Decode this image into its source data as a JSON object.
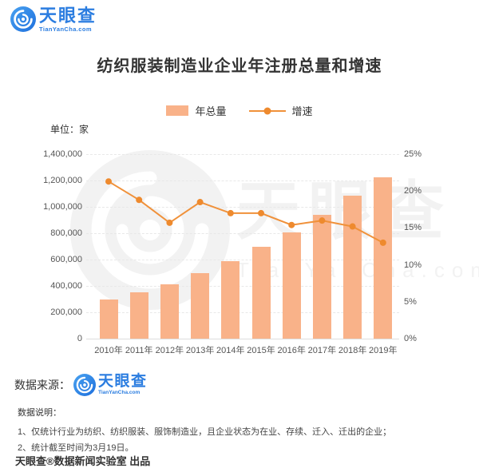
{
  "brand": {
    "name": "天眼查",
    "domain": "TianYanCha.com"
  },
  "header": {
    "title": "纺织服装制造业企业年注册总量和增速"
  },
  "legend": {
    "bar_label": "年总量",
    "line_label": "增速"
  },
  "unit_label": "单位：家",
  "chart_data": {
    "type": "bar",
    "title": "纺织服装制造业企业年注册总量和增速",
    "categories": [
      "2010年",
      "2011年",
      "2012年",
      "2013年",
      "2014年",
      "2015年",
      "2016年",
      "2017年",
      "2018年",
      "2019年"
    ],
    "series": [
      {
        "name": "年总量",
        "type": "bar",
        "axis": "left",
        "color": "#F9B289",
        "values": [
          300000,
          350000,
          415000,
          500000,
          590000,
          695000,
          805000,
          940000,
          1085000,
          1225000
        ]
      },
      {
        "name": "增速",
        "type": "line",
        "axis": "right",
        "color": "#F0913A",
        "marker_color": "#EE8A2E",
        "values": [
          21.3,
          18.8,
          15.7,
          18.5,
          17.0,
          17.0,
          15.4,
          16.0,
          15.2,
          13.0
        ]
      }
    ],
    "y_left": {
      "min": 0,
      "max": 1400000,
      "unit": "家",
      "ticks": [
        0,
        200000,
        400000,
        600000,
        800000,
        1000000,
        1200000,
        1400000
      ],
      "tick_labels": [
        "0",
        "200,000",
        "400,000",
        "600,000",
        "800,000",
        "1,000,000",
        "1,200,000",
        "1,400,000"
      ]
    },
    "y_right": {
      "min": 0,
      "max": 25,
      "ticks": [
        0,
        5,
        10,
        15,
        20,
        25
      ],
      "tick_labels": [
        "0%",
        "5%",
        "10%",
        "15%",
        "20%",
        "25%"
      ]
    },
    "grid": "horizontal-dashed",
    "legend_position": "top-center"
  },
  "source": {
    "label": "数据来源："
  },
  "notes": {
    "heading": "数据说明：",
    "items": [
      "1、仅统计行业为纺织、纺织服装、服饰制造业，且企业状态为在业、存续、迁入、迁出的企业；",
      "2、统计截至时间为3月19日。"
    ]
  },
  "footer": {
    "credit": "天眼查®数据新闻实验室 出品"
  },
  "watermark": {
    "text": "天眼查",
    "subtext": "TianYanCha.com"
  },
  "colors": {
    "bar": "#F9B289",
    "line": "#F0913A",
    "brand_blue": "#2B7DE0",
    "text": "#333333",
    "axis_text": "#555555"
  }
}
